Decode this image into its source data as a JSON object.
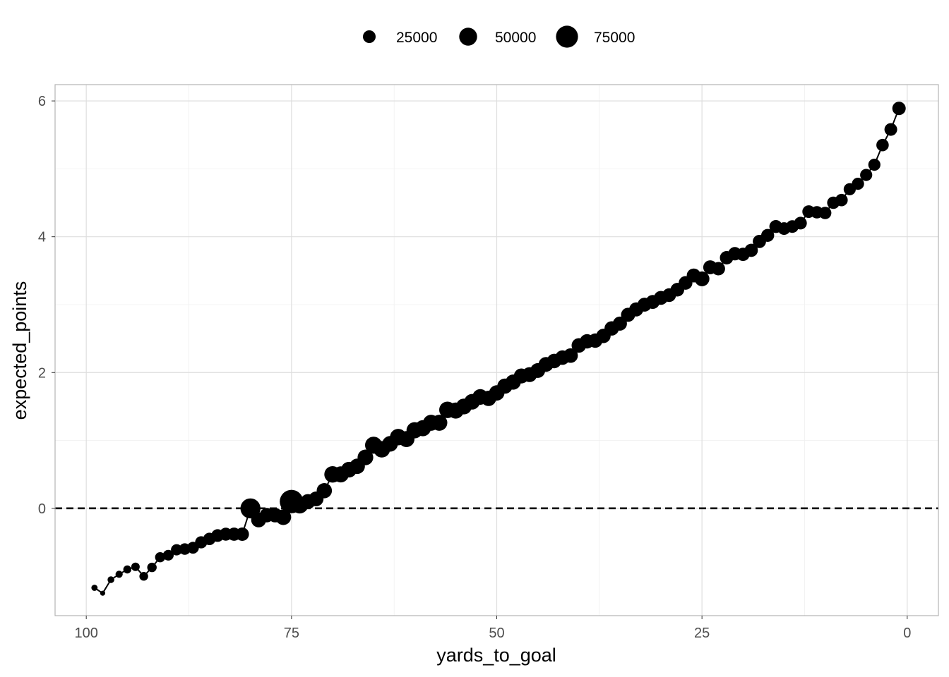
{
  "chart_data": {
    "type": "scatter",
    "title": "",
    "xlabel": "yards_to_goal",
    "ylabel": "expected_points",
    "xlim": [
      103.8,
      -3.8
    ],
    "x_reversed": true,
    "ylim": [
      -1.58,
      6.24
    ],
    "xticks": [
      100,
      75,
      50,
      25,
      0
    ],
    "xtick_labels": [
      "100",
      "75",
      "50",
      "25",
      "0"
    ],
    "yticks": [
      0,
      2,
      4,
      6
    ],
    "ytick_labels": [
      "0",
      "2",
      "4",
      "6"
    ],
    "grid": true,
    "reference_line": {
      "y": 0,
      "style": "dashed"
    },
    "legend": {
      "position": "top",
      "title": "",
      "entries": [
        {
          "value": 25000,
          "label": "25000"
        },
        {
          "value": 50000,
          "label": "50000"
        },
        {
          "value": 75000,
          "label": "75000"
        }
      ]
    },
    "color": "#000000",
    "series": [
      {
        "x": [
          99,
          98,
          97,
          96,
          95,
          94,
          93,
          92,
          91,
          90,
          89,
          88,
          87,
          86,
          85,
          84,
          83,
          82,
          81,
          80,
          79,
          78,
          77,
          76,
          75,
          74,
          73,
          72,
          71,
          70,
          69,
          68,
          67,
          66,
          65,
          64,
          63,
          62,
          61,
          60,
          59,
          58,
          57,
          56,
          55,
          54,
          53,
          52,
          51,
          50,
          49,
          48,
          47,
          46,
          45,
          44,
          43,
          42,
          41,
          40,
          39,
          38,
          37,
          36,
          35,
          34,
          33,
          32,
          31,
          30,
          29,
          28,
          27,
          26,
          25,
          24,
          23,
          22,
          21,
          20,
          19,
          18,
          17,
          16,
          15,
          14,
          13,
          12,
          11,
          10,
          9,
          8,
          7,
          6,
          5,
          4,
          3,
          2,
          1
        ],
        "y": [
          -1.17,
          -1.25,
          -1.05,
          -0.97,
          -0.9,
          -0.86,
          -1.0,
          -0.87,
          -0.72,
          -0.69,
          -0.61,
          -0.6,
          -0.58,
          -0.5,
          -0.45,
          -0.4,
          -0.38,
          -0.38,
          -0.38,
          0.0,
          -0.17,
          -0.1,
          -0.1,
          -0.13,
          0.1,
          0.05,
          0.1,
          0.14,
          0.26,
          0.5,
          0.5,
          0.57,
          0.62,
          0.75,
          0.93,
          0.87,
          0.95,
          1.05,
          1.02,
          1.15,
          1.18,
          1.26,
          1.26,
          1.45,
          1.44,
          1.5,
          1.57,
          1.64,
          1.62,
          1.7,
          1.8,
          1.86,
          1.95,
          1.97,
          2.03,
          2.12,
          2.17,
          2.22,
          2.25,
          2.4,
          2.46,
          2.47,
          2.54,
          2.65,
          2.72,
          2.85,
          2.93,
          3.0,
          3.04,
          3.1,
          3.14,
          3.22,
          3.32,
          3.43,
          3.38,
          3.55,
          3.53,
          3.69,
          3.75,
          3.74,
          3.8,
          3.93,
          4.02,
          4.15,
          4.12,
          4.15,
          4.2,
          4.37,
          4.36,
          4.35,
          4.5,
          4.54,
          4.7,
          4.78,
          4.91,
          5.06,
          5.35,
          5.58,
          5.89
        ],
        "size": [
          6000,
          4000,
          7000,
          8000,
          10000,
          11000,
          12000,
          14000,
          16000,
          18000,
          20000,
          21000,
          22000,
          23000,
          24000,
          25000,
          26000,
          27000,
          28000,
          62000,
          35000,
          32000,
          33000,
          38000,
          85000,
          45000,
          35000,
          34000,
          36000,
          42000,
          40000,
          38000,
          37000,
          38000,
          45000,
          42000,
          38000,
          42000,
          40000,
          41000,
          40000,
          40000,
          40000,
          42000,
          40000,
          39000,
          38000,
          38000,
          37000,
          37000,
          36000,
          36000,
          35000,
          35000,
          34000,
          34000,
          33000,
          33000,
          33000,
          33000,
          32000,
          32000,
          32000,
          32000,
          31000,
          31000,
          31000,
          30000,
          30000,
          30000,
          29000,
          29000,
          29000,
          30000,
          34000,
          30000,
          28000,
          28000,
          28000,
          27000,
          27000,
          27000,
          26000,
          26000,
          25000,
          25000,
          25000,
          25000,
          24000,
          24000,
          24000,
          24000,
          23000,
          23000,
          23000,
          23000,
          24000,
          25000,
          28000
        ]
      }
    ]
  }
}
